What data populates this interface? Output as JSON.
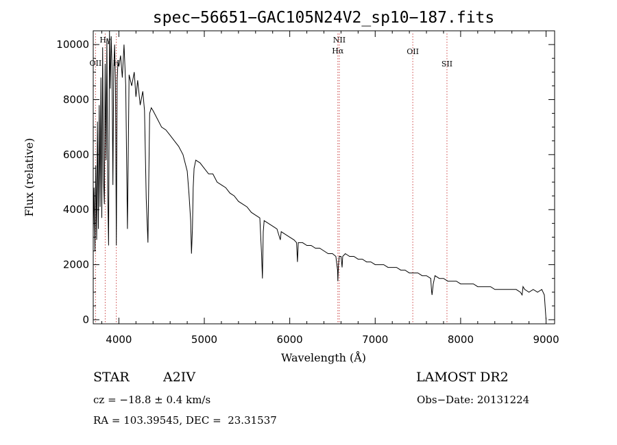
{
  "chart_data": {
    "type": "line",
    "title": "spec−56651−GAC105N24V2_sp10−187.fits",
    "xlabel": "Wavelength (Å)",
    "ylabel": "Flux (relative)",
    "xlim": [
      3700,
      9100
    ],
    "ylim": [
      -150,
      10500
    ],
    "xticks": [
      4000,
      5000,
      6000,
      7000,
      8000,
      9000
    ],
    "yticks": [
      0,
      2000,
      4000,
      6000,
      8000,
      10000
    ],
    "grid": false,
    "series": [
      {
        "x": [
          3700,
          3710,
          3720,
          3730,
          3740,
          3750,
          3760,
          3770,
          3780,
          3790,
          3800,
          3810,
          3820,
          3830,
          3840,
          3850,
          3860,
          3870,
          3880,
          3890,
          3900,
          3910,
          3920,
          3930,
          3940,
          3950,
          3960,
          3970,
          3980,
          3990,
          4000,
          4020,
          4040,
          4060,
          4080,
          4100,
          4120,
          4150,
          4180,
          4200,
          4220,
          4250,
          4280,
          4300,
          4320,
          4340,
          4360,
          4380,
          4400,
          4450,
          4500,
          4550,
          4600,
          4650,
          4700,
          4750,
          4800,
          4820,
          4840,
          4850,
          4861,
          4870,
          4880,
          4900,
          4950,
          5000,
          5050,
          5100,
          5150,
          5200,
          5250,
          5300,
          5350,
          5400,
          5450,
          5500,
          5550,
          5600,
          5650,
          5670,
          5680,
          5690,
          5700,
          5750,
          5800,
          5850,
          5890,
          5900,
          5950,
          6000,
          6050,
          6080,
          6090,
          6100,
          6150,
          6200,
          6250,
          6300,
          6350,
          6400,
          6450,
          6500,
          6540,
          6560,
          6563,
          6570,
          6580,
          6600,
          6613,
          6620,
          6650,
          6700,
          6750,
          6800,
          6850,
          6900,
          6950,
          7000,
          7050,
          7100,
          7150,
          7200,
          7250,
          7300,
          7350,
          7400,
          7450,
          7500,
          7550,
          7600,
          7650,
          7660,
          7665,
          7680,
          7700,
          7750,
          7800,
          7850,
          7900,
          7950,
          8000,
          8050,
          8100,
          8150,
          8200,
          8250,
          8300,
          8350,
          8400,
          8450,
          8500,
          8550,
          8600,
          8650,
          8700,
          8720,
          8730,
          8750,
          8800,
          8850,
          8900,
          8950,
          8980,
          9000
        ],
        "y": [
          3200,
          4800,
          2500,
          5600,
          2900,
          7200,
          3300,
          7800,
          4100,
          8800,
          3700,
          9900,
          5100,
          4200,
          9300,
          5800,
          10200,
          4600,
          2700,
          10500,
          8400,
          10300,
          9200,
          4900,
          9100,
          10000,
          8600,
          2700,
          8700,
          9400,
          9200,
          9600,
          8800,
          10000,
          8500,
          3300,
          8900,
          8500,
          9000,
          8100,
          8700,
          7800,
          8300,
          7600,
          4400,
          2800,
          7500,
          7700,
          7600,
          7300,
          7000,
          6900,
          6700,
          6500,
          6300,
          6000,
          5400,
          4600,
          3600,
          2400,
          3300,
          4800,
          5500,
          5800,
          5700,
          5500,
          5300,
          5300,
          5000,
          4900,
          4800,
          4600,
          4500,
          4300,
          4200,
          4100,
          3900,
          3800,
          3700,
          2400,
          1500,
          3200,
          3600,
          3500,
          3400,
          3300,
          2900,
          3200,
          3100,
          3000,
          2900,
          2800,
          2100,
          2800,
          2800,
          2700,
          2700,
          2600,
          2600,
          2500,
          2400,
          2400,
          2300,
          1800,
          1400,
          2000,
          2300,
          2300,
          1900,
          2300,
          2400,
          2300,
          2300,
          2200,
          2200,
          2100,
          2100,
          2000,
          2000,
          2000,
          1900,
          1900,
          1900,
          1800,
          1800,
          1700,
          1700,
          1700,
          1600,
          1600,
          1500,
          1050,
          900,
          1300,
          1600,
          1500,
          1500,
          1400,
          1400,
          1400,
          1300,
          1300,
          1300,
          1300,
          1200,
          1200,
          1200,
          1200,
          1100,
          1100,
          1100,
          1100,
          1100,
          1100,
          1000,
          900,
          1200,
          1100,
          1000,
          1100,
          1000,
          1100,
          900,
          0
        ]
      }
    ],
    "lines": [
      {
        "label": "OII",
        "x": 3727
      },
      {
        "label": "Hγ",
        "x": 3840
      },
      {
        "label": "H",
        "x": 3970
      },
      {
        "label": "NII",
        "x": 6580
      },
      {
        "label": "Hα",
        "x": 6563
      },
      {
        "label": "OII",
        "x": 7440
      },
      {
        "label": "SII",
        "x": 7840
      }
    ]
  },
  "info": {
    "object_class": "STAR",
    "subclass": "A2IV",
    "survey": "LAMOST DR2",
    "cz": "cz = −18.8 ± 0.4 km/s",
    "obs_date": "Obs−Date: 20131224",
    "coords": "RA = 103.39545, DEC =  23.31537"
  }
}
